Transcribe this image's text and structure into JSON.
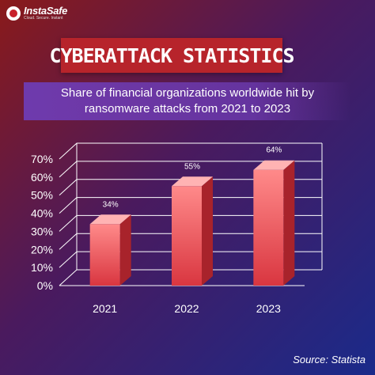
{
  "brand": {
    "name": "InstaSafe",
    "tagline": "Cloud. Secure. Instant"
  },
  "header": {
    "title": "CYBERATTACK STATISTICS"
  },
  "chart_data": {
    "type": "bar",
    "title": "Share of financial organizations worldwide hit by ransomware attacks from 2021 to 2023",
    "categories": [
      "2021",
      "2022",
      "2023"
    ],
    "values": [
      34,
      55,
      64
    ],
    "value_labels": [
      "34%",
      "55%",
      "64%"
    ],
    "y_ticks": [
      0,
      10,
      20,
      30,
      40,
      50,
      60,
      70
    ],
    "y_tick_labels": [
      "0%",
      "10%",
      "20%",
      "30%",
      "40%",
      "50%",
      "60%",
      "70%"
    ],
    "ylim": [
      0,
      70
    ],
    "grid": true,
    "style": "3d",
    "bar_color": "#e8545a",
    "xlabel": "",
    "ylabel": ""
  },
  "footer": {
    "source": "Source:  Statista"
  }
}
